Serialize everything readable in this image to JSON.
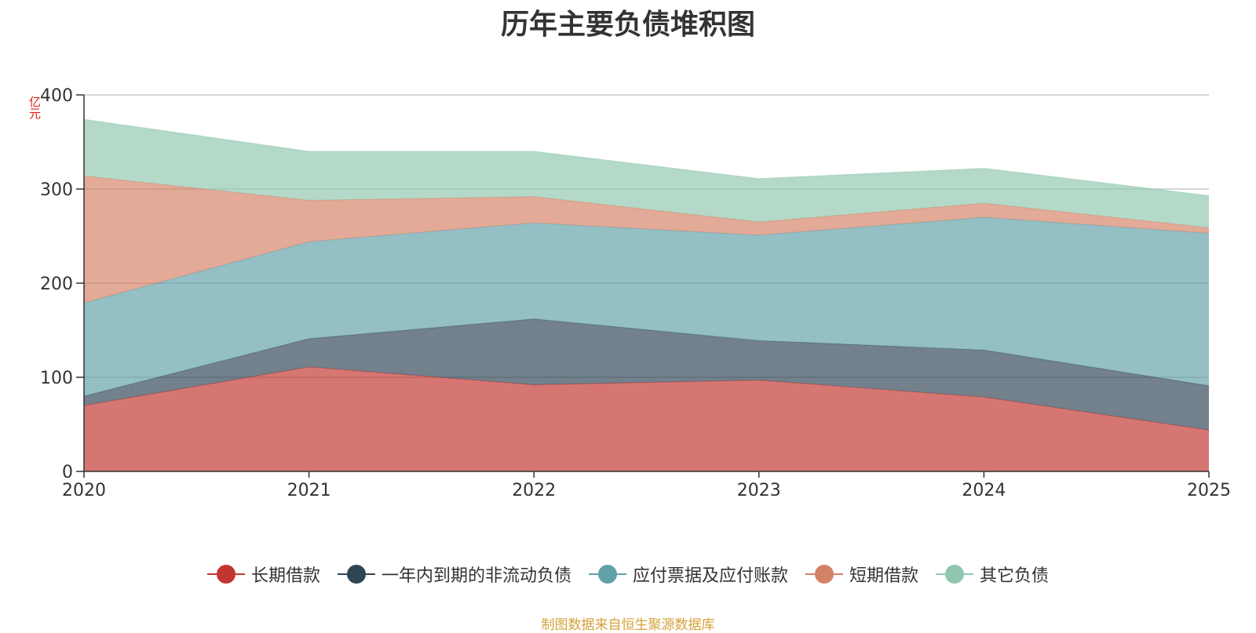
{
  "chart_data": {
    "type": "area",
    "stacked": true,
    "title": "历年主要负债堆积图",
    "unit_label": "亿元",
    "x": [
      "2020",
      "2021",
      "2022",
      "2023",
      "2024",
      "2025"
    ],
    "ylim": [
      0,
      400
    ],
    "yticks": [
      "0",
      "100",
      "200",
      "300",
      "400"
    ],
    "grid": true,
    "legend_position": "bottom",
    "series": [
      {
        "name": "长期借款",
        "color": "#c23531",
        "values": [
          70,
          111,
          92,
          97,
          79,
          44
        ]
      },
      {
        "name": "一年内到期的非流动负债",
        "color": "#2f4554",
        "values": [
          10,
          30,
          70,
          42,
          50,
          47
        ]
      },
      {
        "name": "应付票据及应付账款",
        "color": "#61a0a8",
        "values": [
          99,
          103,
          102,
          112,
          141,
          162
        ]
      },
      {
        "name": "短期借款",
        "color": "#d48265",
        "values": [
          135,
          44,
          28,
          14,
          15,
          6
        ]
      },
      {
        "name": "其它负债",
        "color": "#91c7ae",
        "values": [
          60,
          52,
          48,
          46,
          37,
          34
        ]
      }
    ],
    "source": "制图数据来自恒生聚源数据库"
  }
}
